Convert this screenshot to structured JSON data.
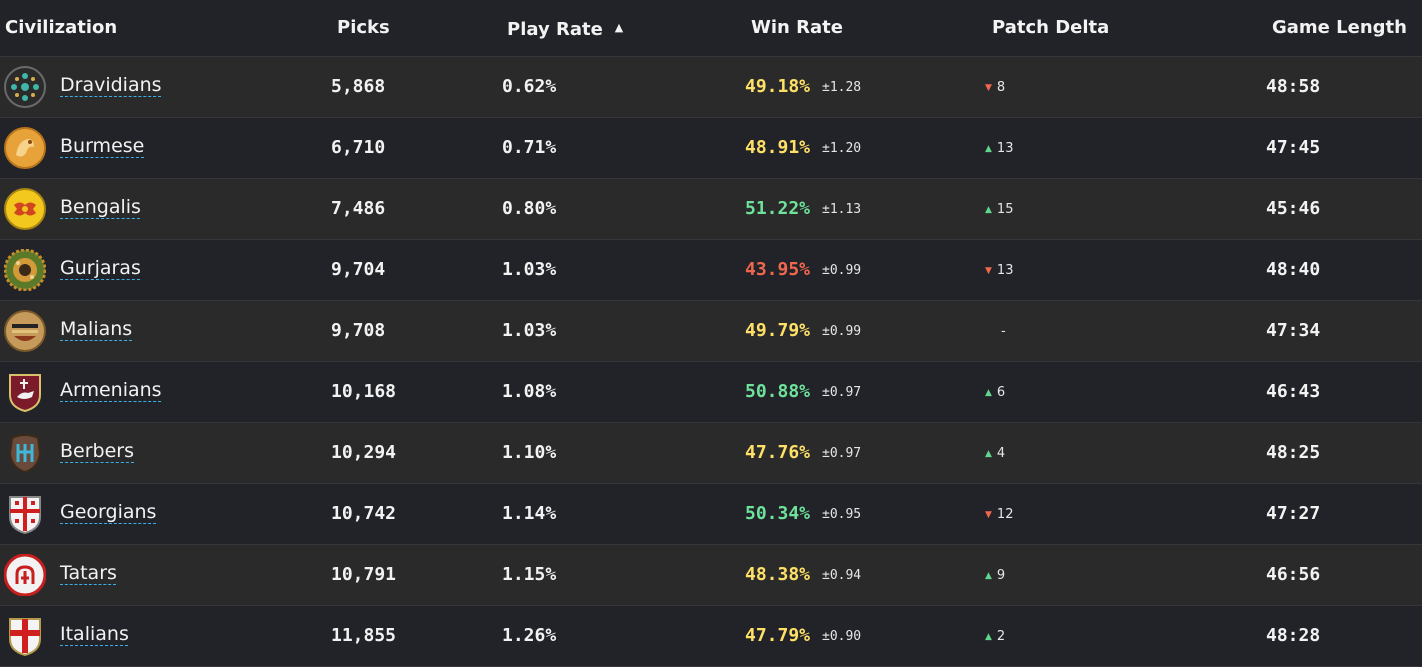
{
  "headers": {
    "civ": "Civilization",
    "picks": "Picks",
    "play": "Play Rate",
    "win": "Win Rate",
    "delta": "Patch Delta",
    "len": "Game Length"
  },
  "sort_indicator": "▲",
  "colors": {
    "yellow": "#ffe066",
    "green": "#6ee29a",
    "red": "#f0674e"
  },
  "rows": [
    {
      "name": "Dravidians",
      "picks": "5,868",
      "play": "0.62%",
      "win": "49.18%",
      "win_color": "yellow",
      "err": "±1.28",
      "delta_dir": "down",
      "delta": "8",
      "len": "48:58",
      "icon": "dravidians-emblem-icon"
    },
    {
      "name": "Burmese",
      "picks": "6,710",
      "play": "0.71%",
      "win": "48.91%",
      "win_color": "yellow",
      "err": "±1.20",
      "delta_dir": "up",
      "delta": "13",
      "len": "47:45",
      "icon": "burmese-emblem-icon"
    },
    {
      "name": "Bengalis",
      "picks": "7,486",
      "play": "0.80%",
      "win": "51.22%",
      "win_color": "green",
      "err": "±1.13",
      "delta_dir": "up",
      "delta": "15",
      "len": "45:46",
      "icon": "bengalis-emblem-icon"
    },
    {
      "name": "Gurjaras",
      "picks": "9,704",
      "play": "1.03%",
      "win": "43.95%",
      "win_color": "red",
      "err": "±0.99",
      "delta_dir": "down",
      "delta": "13",
      "len": "48:40",
      "icon": "gurjaras-emblem-icon"
    },
    {
      "name": "Malians",
      "picks": "9,708",
      "play": "1.03%",
      "win": "49.79%",
      "win_color": "yellow",
      "err": "±0.99",
      "delta_dir": "none",
      "delta": "-",
      "len": "47:34",
      "icon": "malians-emblem-icon"
    },
    {
      "name": "Armenians",
      "picks": "10,168",
      "play": "1.08%",
      "win": "50.88%",
      "win_color": "green",
      "err": "±0.97",
      "delta_dir": "up",
      "delta": "6",
      "len": "46:43",
      "icon": "armenians-emblem-icon"
    },
    {
      "name": "Berbers",
      "picks": "10,294",
      "play": "1.10%",
      "win": "47.76%",
      "win_color": "yellow",
      "err": "±0.97",
      "delta_dir": "up",
      "delta": "4",
      "len": "48:25",
      "icon": "berbers-emblem-icon"
    },
    {
      "name": "Georgians",
      "picks": "10,742",
      "play": "1.14%",
      "win": "50.34%",
      "win_color": "green",
      "err": "±0.95",
      "delta_dir": "down",
      "delta": "12",
      "len": "47:27",
      "icon": "georgians-emblem-icon"
    },
    {
      "name": "Tatars",
      "picks": "10,791",
      "play": "1.15%",
      "win": "48.38%",
      "win_color": "yellow",
      "err": "±0.94",
      "delta_dir": "up",
      "delta": "9",
      "len": "46:56",
      "icon": "tatars-emblem-icon"
    },
    {
      "name": "Italians",
      "picks": "11,855",
      "play": "1.26%",
      "win": "47.79%",
      "win_color": "yellow",
      "err": "±0.90",
      "delta_dir": "up",
      "delta": "2",
      "len": "48:28",
      "icon": "italians-emblem-icon"
    }
  ]
}
